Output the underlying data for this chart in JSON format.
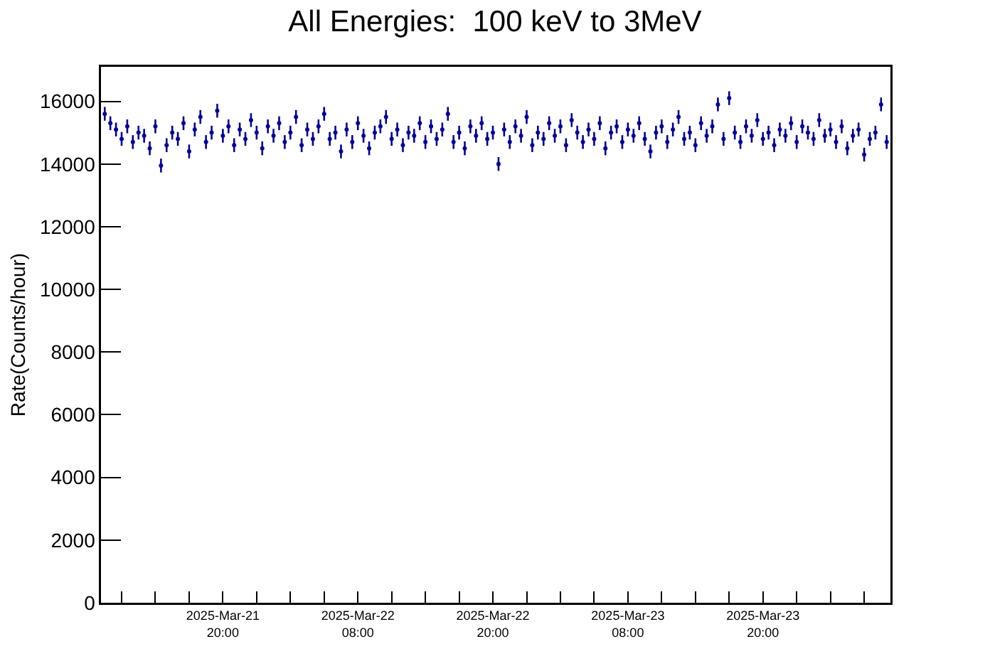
{
  "chart_data": {
    "type": "scatter",
    "title": "All Energies:  100 keV to 3MeV",
    "ylabel": "Rate(Counts/hour)",
    "x": [
      "2025-03-21T09:30",
      "2025-03-21T10:00",
      "2025-03-21T10:30",
      "2025-03-21T11:00",
      "2025-03-21T11:30",
      "2025-03-21T12:00",
      "2025-03-21T12:30",
      "2025-03-21T13:00",
      "2025-03-21T13:30",
      "2025-03-21T14:00",
      "2025-03-21T14:30",
      "2025-03-21T15:00",
      "2025-03-21T15:30",
      "2025-03-21T16:00",
      "2025-03-21T16:30",
      "2025-03-21T17:00",
      "2025-03-21T17:30",
      "2025-03-21T18:00",
      "2025-03-21T18:30",
      "2025-03-21T19:00",
      "2025-03-21T19:30",
      "2025-03-21T20:00",
      "2025-03-21T20:30",
      "2025-03-21T21:00",
      "2025-03-21T21:30",
      "2025-03-21T22:00",
      "2025-03-21T22:30",
      "2025-03-21T23:00",
      "2025-03-21T23:30",
      "2025-03-22T00:00",
      "2025-03-22T00:30",
      "2025-03-22T01:00",
      "2025-03-22T01:30",
      "2025-03-22T02:00",
      "2025-03-22T02:30",
      "2025-03-22T03:00",
      "2025-03-22T03:30",
      "2025-03-22T04:00",
      "2025-03-22T04:30",
      "2025-03-22T05:00",
      "2025-03-22T05:30",
      "2025-03-22T06:00",
      "2025-03-22T06:30",
      "2025-03-22T07:00",
      "2025-03-22T07:30",
      "2025-03-22T08:00",
      "2025-03-22T08:30",
      "2025-03-22T09:00",
      "2025-03-22T09:30",
      "2025-03-22T10:00",
      "2025-03-22T10:30",
      "2025-03-22T11:00",
      "2025-03-22T11:30",
      "2025-03-22T12:00",
      "2025-03-22T12:30",
      "2025-03-22T13:00",
      "2025-03-22T13:30",
      "2025-03-22T14:00",
      "2025-03-22T14:30",
      "2025-03-22T15:00",
      "2025-03-22T15:30",
      "2025-03-22T16:00",
      "2025-03-22T16:30",
      "2025-03-22T17:00",
      "2025-03-22T17:30",
      "2025-03-22T18:00",
      "2025-03-22T18:30",
      "2025-03-22T19:00",
      "2025-03-22T19:30",
      "2025-03-22T20:00",
      "2025-03-22T20:30",
      "2025-03-22T21:00",
      "2025-03-22T21:30",
      "2025-03-22T22:00",
      "2025-03-22T22:30",
      "2025-03-22T23:00",
      "2025-03-22T23:30",
      "2025-03-23T00:00",
      "2025-03-23T00:30",
      "2025-03-23T01:00",
      "2025-03-23T01:30",
      "2025-03-23T02:00",
      "2025-03-23T02:30",
      "2025-03-23T03:00",
      "2025-03-23T03:30",
      "2025-03-23T04:00",
      "2025-03-23T04:30",
      "2025-03-23T05:00",
      "2025-03-23T05:30",
      "2025-03-23T06:00",
      "2025-03-23T06:30",
      "2025-03-23T07:00",
      "2025-03-23T07:30",
      "2025-03-23T08:00",
      "2025-03-23T08:30",
      "2025-03-23T09:00",
      "2025-03-23T09:30",
      "2025-03-23T10:00",
      "2025-03-23T10:30",
      "2025-03-23T11:00",
      "2025-03-23T11:30",
      "2025-03-23T12:00",
      "2025-03-23T12:30",
      "2025-03-23T13:00",
      "2025-03-23T13:30",
      "2025-03-23T14:00",
      "2025-03-23T14:30",
      "2025-03-23T15:00",
      "2025-03-23T15:30",
      "2025-03-23T16:00",
      "2025-03-23T16:30",
      "2025-03-23T17:00",
      "2025-03-23T17:30",
      "2025-03-23T18:00",
      "2025-03-23T18:30",
      "2025-03-23T19:00",
      "2025-03-23T19:30",
      "2025-03-23T20:00",
      "2025-03-23T20:30",
      "2025-03-23T21:00",
      "2025-03-23T21:30",
      "2025-03-23T22:00",
      "2025-03-23T22:30",
      "2025-03-23T23:00",
      "2025-03-23T23:30",
      "2025-03-24T00:00",
      "2025-03-24T00:30",
      "2025-03-24T01:00",
      "2025-03-24T01:30",
      "2025-03-24T02:00",
      "2025-03-24T02:30",
      "2025-03-24T03:00",
      "2025-03-24T03:30",
      "2025-03-24T04:00",
      "2025-03-24T04:30",
      "2025-03-24T05:00",
      "2025-03-24T05:30",
      "2025-03-24T06:00",
      "2025-03-24T06:30",
      "2025-03-24T07:00"
    ],
    "series": [
      {
        "color": "#000099",
        "values": [
          15600,
          15300,
          15100,
          14800,
          15200,
          14700,
          15000,
          14900,
          14500,
          15200,
          13950,
          14600,
          15000,
          14800,
          15300,
          14400,
          15100,
          15500,
          14700,
          15000,
          15700,
          14900,
          15200,
          14600,
          15100,
          14800,
          15400,
          15000,
          14500,
          15200,
          14900,
          15300,
          14700,
          15000,
          15500,
          14600,
          15100,
          14800,
          15200,
          15600,
          14800,
          15000,
          14400,
          15100,
          14700,
          15300,
          14900,
          14500,
          15000,
          15200,
          15500,
          14800,
          15100,
          14600,
          15000,
          14900,
          15300,
          14700,
          15200,
          14800,
          15100,
          15600,
          14700,
          15000,
          14500,
          15200,
          14900,
          15300,
          14800,
          15000,
          14000,
          15100,
          14700,
          15200,
          14900,
          15500,
          14600,
          15000,
          14800,
          15300,
          14900,
          15200,
          14600,
          15400,
          15000,
          14700,
          15100,
          14800,
          15300,
          14500,
          15000,
          15200,
          14700,
          15100,
          14900,
          15300,
          14800,
          14400,
          15000,
          15200,
          14700,
          15100,
          15500,
          14800,
          15000,
          14600,
          15300,
          14900,
          15200,
          15900,
          14800,
          16100,
          15000,
          14700,
          15200,
          14900,
          15400,
          14800,
          15000,
          14600,
          15100,
          14900,
          15300,
          14700,
          15200,
          15000,
          14800,
          15400,
          14900,
          15100,
          14700,
          15200,
          14500,
          14900,
          15100,
          14300,
          14800,
          15000,
          15900,
          14700
        ],
        "errors": [
          220,
          220,
          220,
          220,
          220,
          220,
          220,
          220,
          220,
          220,
          220,
          220,
          220,
          220,
          220,
          220,
          220,
          220,
          220,
          220,
          220,
          220,
          220,
          220,
          220,
          220,
          220,
          220,
          220,
          220,
          220,
          220,
          220,
          220,
          220,
          220,
          220,
          220,
          220,
          220,
          220,
          220,
          220,
          220,
          220,
          220,
          220,
          220,
          220,
          220,
          220,
          220,
          220,
          220,
          220,
          220,
          220,
          220,
          220,
          220,
          220,
          220,
          220,
          220,
          220,
          220,
          220,
          220,
          220,
          220,
          220,
          220,
          220,
          220,
          220,
          220,
          220,
          220,
          220,
          220,
          220,
          220,
          220,
          220,
          220,
          220,
          220,
          220,
          220,
          220,
          220,
          220,
          220,
          220,
          220,
          220,
          220,
          220,
          220,
          220,
          220,
          220,
          220,
          220,
          220,
          220,
          220,
          220,
          220,
          220,
          220,
          220,
          220,
          220,
          220,
          220,
          220,
          220,
          220,
          220,
          220,
          220,
          220,
          220,
          220,
          220,
          220,
          220,
          220,
          220,
          220,
          220,
          220,
          220,
          220,
          220,
          220,
          220,
          220,
          220
        ]
      }
    ],
    "xlim": [
      "2025-03-21T09:10",
      "2025-03-24T07:20"
    ],
    "xticks": [
      {
        "value": "2025-03-21T11:00",
        "label": null
      },
      {
        "value": "2025-03-21T14:00",
        "label": null
      },
      {
        "value": "2025-03-21T17:00",
        "label": null
      },
      {
        "value": "2025-03-21T20:00",
        "label": "2025-Mar-21\n20:00"
      },
      {
        "value": "2025-03-21T23:00",
        "label": null
      },
      {
        "value": "2025-03-22T02:00",
        "label": null
      },
      {
        "value": "2025-03-22T05:00",
        "label": null
      },
      {
        "value": "2025-03-22T08:00",
        "label": "2025-Mar-22\n08:00"
      },
      {
        "value": "2025-03-22T11:00",
        "label": null
      },
      {
        "value": "2025-03-22T14:00",
        "label": null
      },
      {
        "value": "2025-03-22T17:00",
        "label": null
      },
      {
        "value": "2025-03-22T20:00",
        "label": "2025-Mar-22\n20:00"
      },
      {
        "value": "2025-03-22T23:00",
        "label": null
      },
      {
        "value": "2025-03-23T02:00",
        "label": null
      },
      {
        "value": "2025-03-23T05:00",
        "label": null
      },
      {
        "value": "2025-03-23T08:00",
        "label": "2025-Mar-23\n08:00"
      },
      {
        "value": "2025-03-23T11:00",
        "label": null
      },
      {
        "value": "2025-03-23T14:00",
        "label": null
      },
      {
        "value": "2025-03-23T17:00",
        "label": null
      },
      {
        "value": "2025-03-23T20:00",
        "label": "2025-Mar-23\n20:00"
      },
      {
        "value": "2025-03-23T23:00",
        "label": null
      },
      {
        "value": "2025-03-24T02:00",
        "label": null
      },
      {
        "value": "2025-03-24T05:00",
        "label": null
      }
    ],
    "ylim": [
      0,
      17100
    ],
    "yticks": [
      0,
      2000,
      4000,
      6000,
      8000,
      10000,
      12000,
      14000,
      16000
    ],
    "grid": false,
    "marker": "circle"
  }
}
